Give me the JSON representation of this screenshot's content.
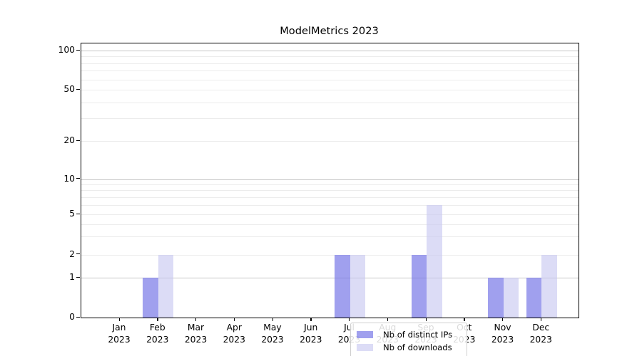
{
  "figure": {
    "background": "#ffffff"
  },
  "chart_data": {
    "type": "bar",
    "title": "ModelMetrics 2023",
    "categories": [
      {
        "month": "Jan",
        "year": "2023"
      },
      {
        "month": "Feb",
        "year": "2023"
      },
      {
        "month": "Mar",
        "year": "2023"
      },
      {
        "month": "Apr",
        "year": "2023"
      },
      {
        "month": "May",
        "year": "2023"
      },
      {
        "month": "Jun",
        "year": "2023"
      },
      {
        "month": "Jul",
        "year": "2023"
      },
      {
        "month": "Aug",
        "year": "2023"
      },
      {
        "month": "Sep",
        "year": "2023"
      },
      {
        "month": "Oct",
        "year": "2023"
      },
      {
        "month": "Nov",
        "year": "2023"
      },
      {
        "month": "Dec",
        "year": "2023"
      }
    ],
    "series": [
      {
        "name": "Nb of distinct IPs",
        "color": "rgba(124,124,232,0.72)",
        "values": [
          0,
          1,
          0,
          0,
          0,
          0,
          2,
          0,
          2,
          0,
          1,
          1
        ]
      },
      {
        "name": "Nb of downloads",
        "color": "rgba(198,198,241,0.62)",
        "values": [
          0,
          2,
          0,
          0,
          0,
          0,
          2,
          0,
          6,
          0,
          1,
          2
        ]
      }
    ],
    "y_axis": {
      "scale": "symlog",
      "tick_values": [
        0,
        1,
        2,
        5,
        10,
        20,
        50,
        100
      ],
      "major_gridlines": [
        1,
        10,
        100
      ],
      "minor_gridlines": [
        2,
        3,
        4,
        5,
        6,
        7,
        8,
        9,
        20,
        30,
        40,
        50,
        60,
        70,
        80,
        90
      ],
      "range": [
        0,
        112
      ]
    },
    "x_axis": {
      "year_label": "2023"
    },
    "legend": {
      "position": "lower center",
      "entries": [
        "Nb of distinct IPs",
        "Nb of downloads"
      ]
    },
    "grid": true
  },
  "colors": {
    "major_grid": "#c6c6c6",
    "minor_grid": "#ececec",
    "spine": "#000000",
    "text": "#000000",
    "legend_border": "#d0d0d0",
    "bar_distinct_ips": "rgba(124,124,232,0.72)",
    "bar_downloads": "rgba(198,198,241,0.62)"
  }
}
